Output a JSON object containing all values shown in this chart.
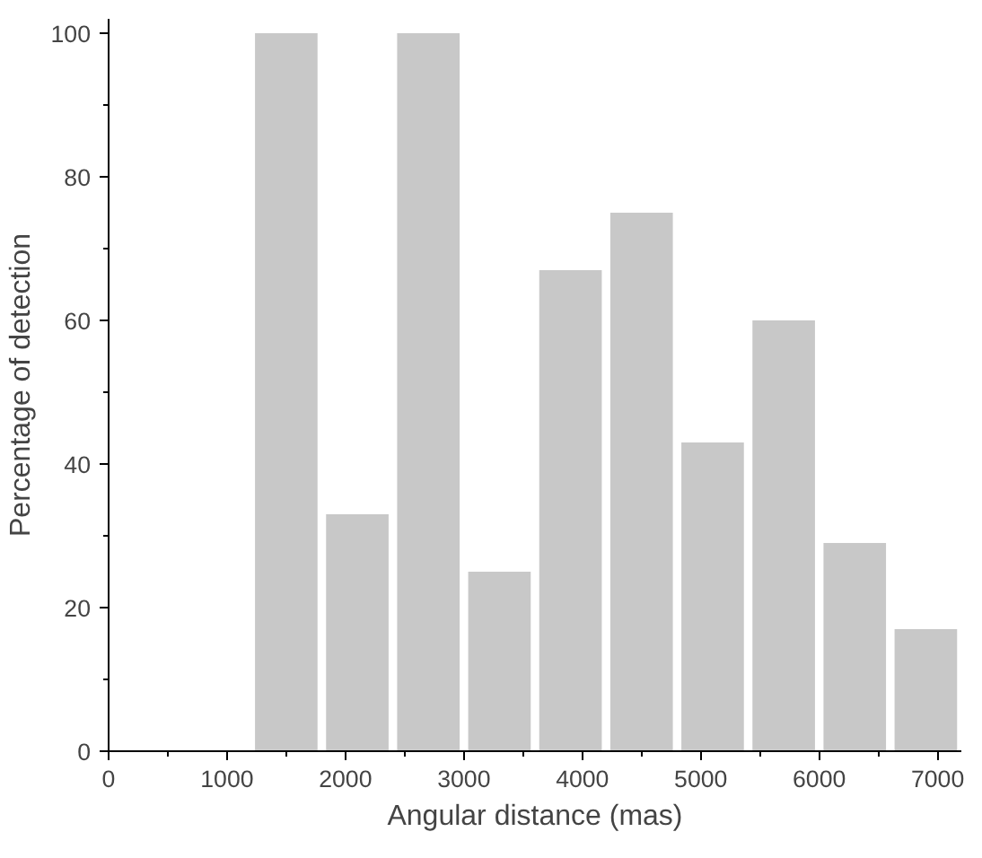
{
  "chart_data": {
    "type": "histogram",
    "xlabel": "Angular distance (mas)",
    "ylabel": "Percentage of detection",
    "bins": [
      1200,
      1800,
      2400,
      3000,
      3600,
      4200,
      4800,
      5400,
      6000,
      6600,
      7200
    ],
    "values": [
      100,
      33,
      100,
      25,
      67,
      75,
      43,
      60,
      29,
      17
    ],
    "color": "#c8c8c8",
    "xlim": [
      0,
      7200
    ],
    "ylim": [
      0,
      102
    ],
    "xticks": [
      0,
      1000,
      2000,
      3000,
      4000,
      5000,
      6000,
      7000
    ],
    "yticks": [
      0,
      20,
      40,
      60,
      80,
      100
    ],
    "grid": false
  }
}
